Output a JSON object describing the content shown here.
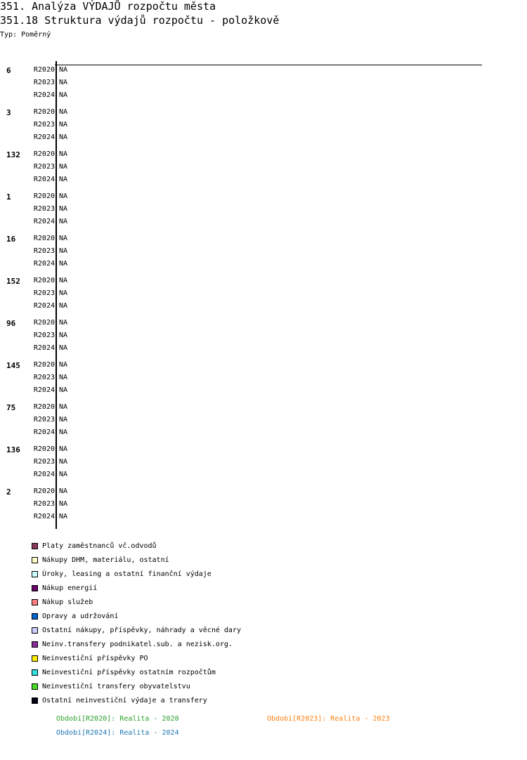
{
  "header": {
    "title": "351. Analýza VÝDAJŮ rozpočtu města",
    "subtitle": "351.18 Struktura výdajů rozpočtu - položkově",
    "type_label": "Typ: Poměrný"
  },
  "chart_data": {
    "type": "bar",
    "orientation": "horizontal",
    "stacked": true,
    "categories": [
      "6",
      "3",
      "132",
      "1",
      "16",
      "152",
      "96",
      "145",
      "75",
      "136",
      "2"
    ],
    "periods": [
      "R2020",
      "R2023",
      "R2024"
    ],
    "values_label": "NA",
    "values": null,
    "series": [
      {
        "name": "Platy zaměstnanců vč.odvodů",
        "color": "#8b3a5c"
      },
      {
        "name": "Nákupy DHM, materiálu, ostatní",
        "color": "#ffffcc"
      },
      {
        "name": "Úroky, leasing a ostatní finanční výdaje",
        "color": "#ccffff"
      },
      {
        "name": "Nákup energií",
        "color": "#660066"
      },
      {
        "name": "Nákup služeb",
        "color": "#ff8080"
      },
      {
        "name": "Opravy a udržování",
        "color": "#0066cc"
      },
      {
        "name": "Ostatní nákupy, příspěvky, náhrady a věcné dary",
        "color": "#ccccff"
      },
      {
        "name": "Neinv.transfery podnikatel.sub. a nezisk.org.",
        "color": "#882c99"
      },
      {
        "name": "Neinvestiční příspěvky PO",
        "color": "#ffee00"
      },
      {
        "name": "Neinvestiční příspěvky ostatním rozpočtům",
        "color": "#33e0e0"
      },
      {
        "name": "Neinvestiční transfery obyvatelstvu",
        "color": "#44dd22"
      },
      {
        "name": "Ostatní neinvestiční výdaje a transfery",
        "color": "#000011"
      }
    ],
    "period_legend": [
      {
        "label": "Období[R2020]: Realita - 2020",
        "color": "#2ca02c"
      },
      {
        "label": "Období[R2023]: Realita - 2023",
        "color": "#ff7f0e"
      },
      {
        "label": "Období[R2024]: Realita - 2024",
        "color": "#1f77b4"
      }
    ]
  }
}
